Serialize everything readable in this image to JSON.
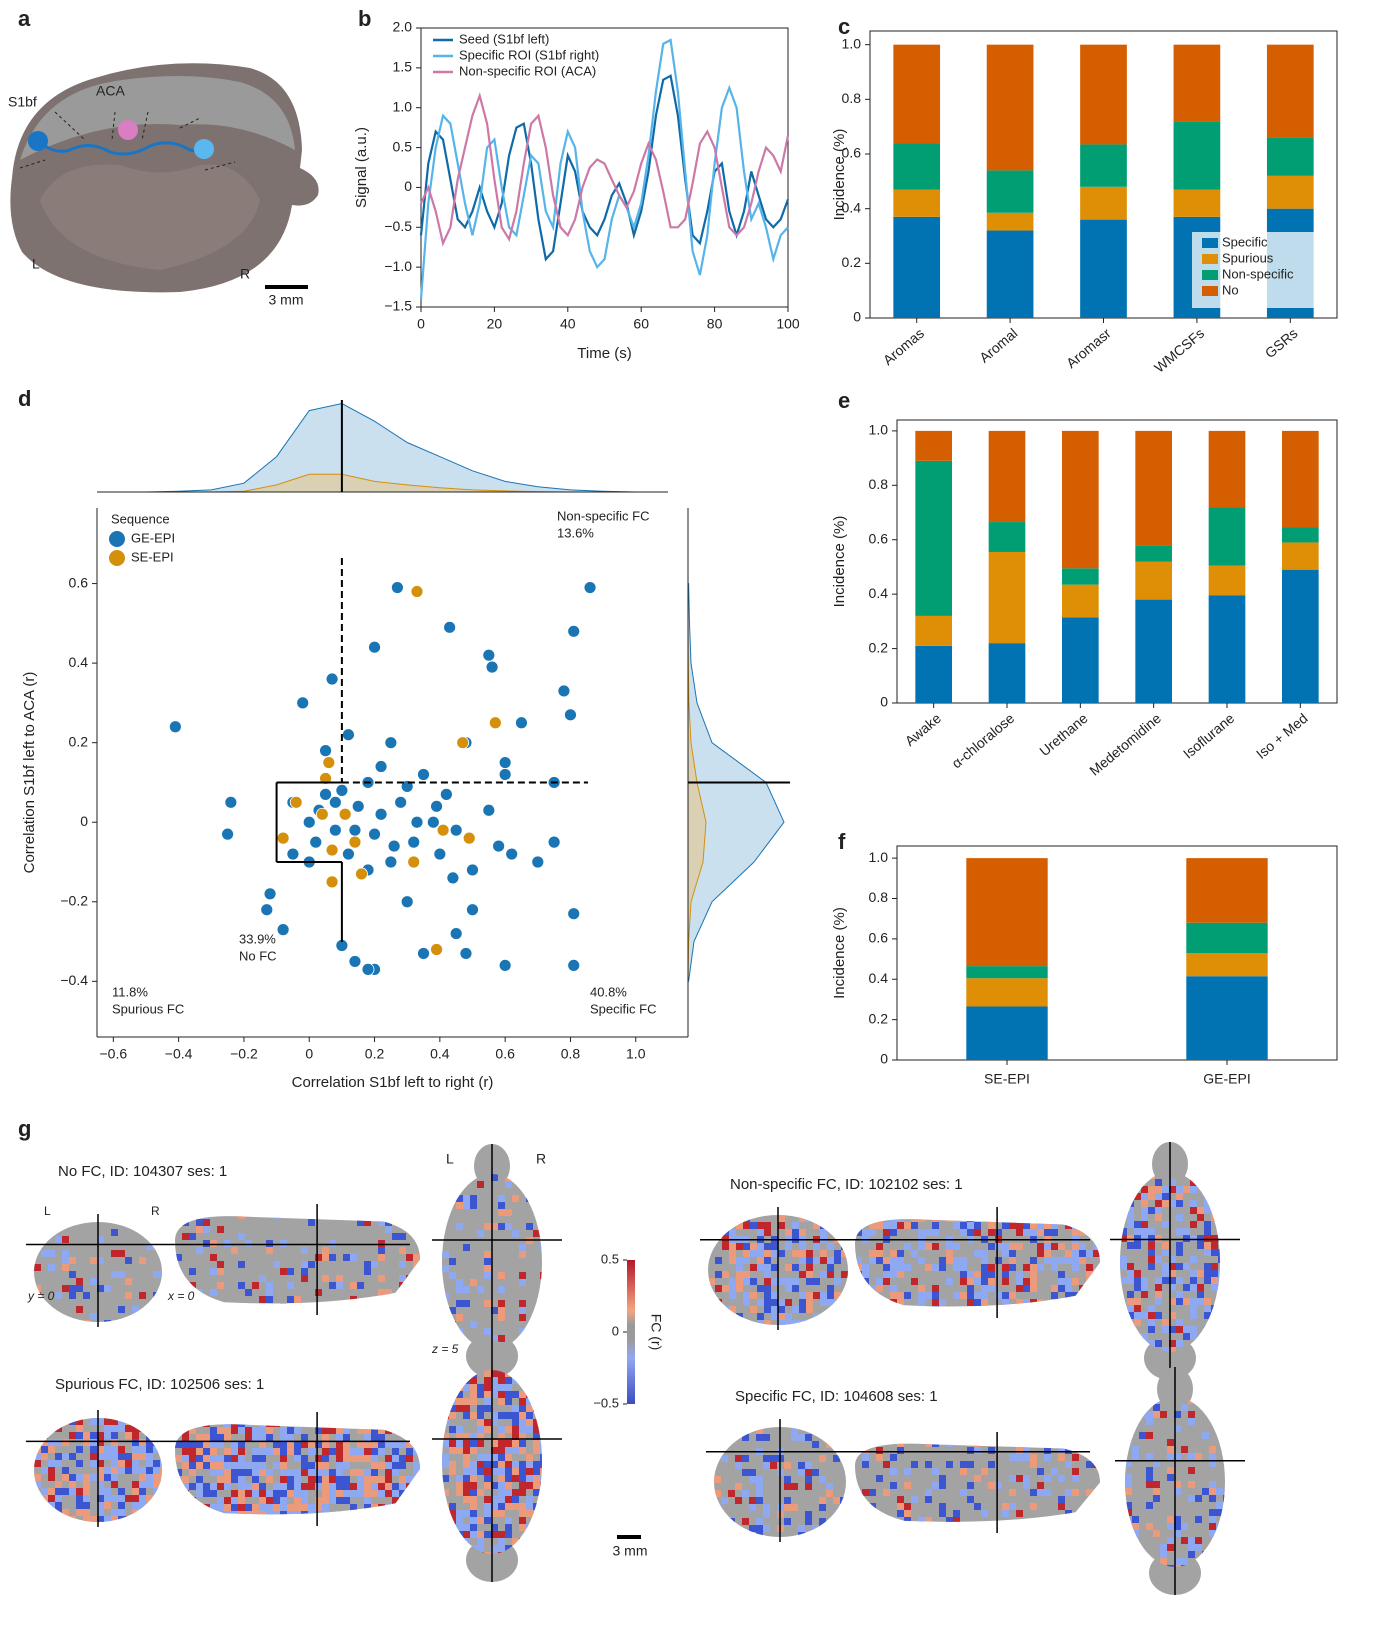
{
  "panel_labels": [
    "a",
    "b",
    "c",
    "d",
    "e",
    "f",
    "g"
  ],
  "panel_a": {
    "labels": [
      "S1bf",
      "ACA",
      "L",
      "R"
    ],
    "scale_bar": "3 mm"
  },
  "chart_data": [
    {
      "type": "line",
      "x_label": "Time (s)",
      "y_label": "Signal (a.u.)",
      "x": [
        0,
        2,
        4,
        6,
        8,
        10,
        12,
        14,
        16,
        18,
        20,
        22,
        24,
        26,
        28,
        30,
        32,
        34,
        36,
        38,
        40,
        42,
        44,
        46,
        48,
        50,
        52,
        54,
        56,
        58,
        60,
        62,
        64,
        66,
        68,
        70,
        72,
        74,
        76,
        78,
        80,
        82,
        84,
        86,
        88,
        90,
        92,
        94,
        96,
        98,
        100
      ],
      "series": [
        {
          "name": "Seed (S1bf left)",
          "color": "#0e6aa8",
          "values": [
            -0.6,
            0.3,
            0.7,
            0.6,
            0.1,
            -0.4,
            -0.5,
            -0.3,
            0.0,
            -0.3,
            -0.5,
            -0.2,
            0.4,
            0.75,
            0.8,
            0.3,
            -0.4,
            -0.9,
            -0.8,
            -0.2,
            0.4,
            0.2,
            -0.3,
            -0.5,
            -0.6,
            -0.4,
            -0.1,
            0.05,
            -0.2,
            -0.6,
            -0.3,
            0.2,
            0.9,
            1.35,
            1.4,
            0.9,
            0.1,
            -0.6,
            -0.7,
            -0.3,
            0.2,
            0.3,
            -0.3,
            -0.6,
            -0.3,
            0.2,
            -0.1,
            -0.4,
            -0.5,
            -0.4,
            -0.15
          ]
        },
        {
          "name": "Specific ROI (S1bf right)",
          "color": "#56b4e9",
          "values": [
            -1.4,
            -0.2,
            0.5,
            0.9,
            0.8,
            0.3,
            -0.2,
            -0.6,
            -0.2,
            0.5,
            0.6,
            0.0,
            -0.5,
            -0.6,
            -0.1,
            0.4,
            0.3,
            -0.3,
            -0.5,
            0.3,
            0.7,
            0.5,
            -0.3,
            -0.8,
            -1.0,
            -0.9,
            -0.4,
            -0.1,
            -0.25,
            -0.5,
            -0.2,
            0.4,
            1.2,
            1.8,
            1.85,
            1.2,
            0.2,
            -0.8,
            -1.1,
            -0.6,
            0.3,
            1.0,
            1.25,
            1.0,
            0.2,
            -0.4,
            -0.2,
            -0.5,
            -0.9,
            -0.6,
            -0.5
          ]
        },
        {
          "name": "Non-specific ROI (ACA)",
          "color": "#cc79a7",
          "values": [
            -0.2,
            0.0,
            -0.3,
            -0.7,
            -0.5,
            0.1,
            0.5,
            0.9,
            1.15,
            0.8,
            0.1,
            -0.5,
            -0.65,
            -0.3,
            0.3,
            0.8,
            0.9,
            0.5,
            -0.1,
            -0.5,
            -0.6,
            -0.4,
            0.0,
            0.25,
            0.35,
            0.3,
            0.1,
            -0.1,
            -0.25,
            -0.05,
            0.3,
            0.55,
            0.35,
            -0.05,
            -0.5,
            -0.5,
            -0.4,
            0.05,
            0.55,
            0.7,
            0.5,
            0.0,
            -0.5,
            -0.6,
            -0.5,
            -0.2,
            0.2,
            0.5,
            0.4,
            0.2,
            0.65
          ]
        }
      ],
      "xlim": [
        0,
        100
      ],
      "ylim": [
        -1.5,
        2.0
      ],
      "xticks": [
        0,
        20,
        40,
        60,
        80,
        100
      ],
      "yticks": [
        {
          "value": -1.5,
          "label": "−1.5"
        },
        {
          "value": -1.0,
          "label": "−1.0"
        },
        {
          "value": -0.5,
          "label": "−0.5"
        },
        0,
        0.5,
        {
          "value": 1.0,
          "label": "1.0"
        },
        1.5,
        {
          "value": 2.0,
          "label": "2.0"
        }
      ],
      "legend": "upper left"
    },
    {
      "type": "stacked_bar",
      "y_label": "Incidence (%)",
      "categories": [
        "Aromas",
        "Aromal",
        "Aromasr",
        "WMCSFs",
        "GSRs"
      ],
      "series": [
        {
          "name": "Specific",
          "color": "#0173b2",
          "values": [
            0.37,
            0.32,
            0.36,
            0.37,
            0.4
          ]
        },
        {
          "name": "Spurious",
          "color": "#de8f05",
          "values": [
            0.1,
            0.065,
            0.12,
            0.1,
            0.12
          ]
        },
        {
          "name": "Non-specific",
          "color": "#029e73",
          "values": [
            0.17,
            0.155,
            0.155,
            0.25,
            0.14
          ]
        },
        {
          "name": "No",
          "color": "#d55e00",
          "values": [
            0.36,
            0.46,
            0.365,
            0.28,
            0.34
          ]
        }
      ],
      "ylim": [
        0,
        1.05
      ],
      "yticks": [
        0,
        0.2,
        0.4,
        0.6,
        0.8,
        {
          "value": 1.0,
          "label": "1.0"
        }
      ],
      "legend": "lower right"
    },
    {
      "type": "scatter",
      "x_label": "Correlation S1bf left to right (r)",
      "y_label": "Correlation S1bf left to ACA (r)",
      "legend_title": "Sequence",
      "series": [
        {
          "name": "GE-EPI",
          "color": "#1a75b4",
          "x": [
            -0.41,
            -0.24,
            -0.25,
            -0.13,
            -0.12,
            -0.08,
            -0.05,
            0.0,
            0.02,
            0.05,
            0.08,
            0.1,
            0.12,
            0.15,
            0.18,
            0.2,
            0.22,
            0.25,
            0.28,
            0.3,
            0.32,
            0.35,
            0.38,
            0.4,
            0.42,
            0.45,
            0.48,
            0.5,
            0.55,
            0.58,
            0.6,
            0.62,
            0.65,
            0.7,
            0.75,
            0.8,
            0.81,
            0.86,
            0.78,
            0.81,
            0.81,
            0.75,
            0.6,
            0.48,
            0.2,
            0.18,
            0.14,
            0.1,
            0.43,
            0.27,
            0.2,
            0.07,
            -0.02,
            0.05,
            0.25,
            0.3,
            0.35,
            0.12,
            0.0,
            -0.05,
            0.03,
            0.08,
            0.14,
            0.18,
            0.22,
            0.26,
            0.33,
            0.39,
            0.44,
            0.55,
            0.56,
            0.5,
            0.45,
            0.6
          ],
          "y": [
            0.24,
            0.05,
            -0.03,
            -0.22,
            -0.18,
            -0.27,
            0.05,
            0.0,
            -0.05,
            0.07,
            -0.02,
            0.08,
            -0.08,
            0.04,
            0.1,
            -0.03,
            0.02,
            -0.1,
            0.05,
            0.09,
            -0.05,
            0.12,
            0.0,
            -0.08,
            0.07,
            -0.02,
            0.2,
            -0.12,
            0.03,
            -0.06,
            0.15,
            -0.08,
            0.25,
            -0.1,
            0.1,
            0.27,
            0.48,
            0.59,
            0.33,
            -0.23,
            -0.36,
            -0.05,
            -0.36,
            -0.33,
            -0.37,
            -0.37,
            -0.35,
            -0.31,
            0.49,
            0.59,
            0.44,
            0.36,
            0.3,
            0.18,
            0.2,
            -0.2,
            -0.33,
            0.22,
            -0.1,
            -0.08,
            0.03,
            0.05,
            -0.02,
            -0.12,
            0.14,
            -0.06,
            0.0,
            0.04,
            -0.14,
            0.42,
            0.39,
            -0.22,
            -0.28,
            0.12
          ]
        },
        {
          "name": "SE-EPI",
          "color": "#d4900a",
          "x": [
            0.33,
            0.57,
            0.47,
            0.06,
            0.05,
            0.04,
            -0.08,
            -0.04,
            0.07,
            0.14,
            0.16,
            0.32,
            0.41,
            0.49,
            0.39,
            0.07,
            0.11
          ],
          "y": [
            0.58,
            0.25,
            0.2,
            0.15,
            0.11,
            0.02,
            -0.04,
            0.05,
            -0.07,
            -0.05,
            -0.13,
            -0.1,
            -0.02,
            -0.04,
            -0.32,
            -0.15,
            0.02
          ]
        }
      ],
      "xlim": [
        -0.65,
        1.16
      ],
      "ylim": [
        -0.54,
        0.79
      ],
      "xticks": [
        {
          "value": -0.6,
          "label": "−0.6"
        },
        {
          "value": -0.4,
          "label": "−0.4"
        },
        {
          "value": -0.2,
          "label": "−0.2"
        },
        0,
        0.2,
        0.4,
        0.6,
        0.8,
        {
          "value": 1.0,
          "label": "1.0"
        }
      ],
      "yticks": [
        {
          "value": -0.4,
          "label": "−0.4"
        },
        {
          "value": -0.2,
          "label": "−0.2"
        },
        0,
        0.2,
        0.4,
        0.6
      ],
      "thresholds": [
        -0.1,
        0.1
      ],
      "annotations": [
        "Non-specific FC",
        "13.6%",
        "33.9%",
        "No FC",
        "11.8%",
        "Spurious FC",
        "40.8%",
        "Specific FC"
      ],
      "x_density_at": [
        -0.6,
        -0.5,
        -0.4,
        -0.3,
        -0.2,
        -0.1,
        0,
        0.1,
        0.2,
        0.3,
        0.4,
        0.5,
        0.6,
        0.7,
        0.8,
        0.9,
        1.0
      ],
      "x_density": [
        [
          0,
          0,
          0.02,
          0.06,
          0.25,
          1.0,
          2.3,
          2.5,
          2.0,
          1.4,
          1.0,
          0.6,
          0.3,
          0.15,
          0.06,
          0.02,
          0
        ],
        [
          0,
          0,
          0,
          0,
          0.02,
          0.2,
          0.5,
          0.5,
          0.3,
          0.2,
          0.12,
          0.06,
          0.03,
          0.01,
          0,
          0,
          0
        ]
      ],
      "x_density_lim": [
        0,
        2.6
      ],
      "y_density_at": [
        -0.4,
        -0.3,
        -0.2,
        -0.1,
        0,
        0.1,
        0.2,
        0.3,
        0.4,
        0.5,
        0.6
      ],
      "y_density": [
        [
          0.02,
          0.2,
          0.8,
          2.2,
          3.2,
          2.6,
          0.8,
          0.3,
          0.1,
          0.05,
          0.02
        ],
        [
          0,
          0.02,
          0.1,
          0.5,
          0.6,
          0.3,
          0.1,
          0.03,
          0.01,
          0,
          0
        ]
      ],
      "y_density_lim": [
        0,
        3.4
      ],
      "legend": "upper left"
    },
    {
      "type": "stacked_bar",
      "y_label": "Incidence (%)",
      "categories": [
        "Awake",
        "α-chloralose",
        "Urethane",
        "Medetomidine",
        "Isoflurane",
        "Iso + Med"
      ],
      "series": [
        {
          "name": "Specific",
          "color": "#0173b2",
          "values": [
            0.21,
            0.22,
            0.315,
            0.38,
            0.395,
            0.49
          ]
        },
        {
          "name": "Spurious",
          "color": "#de8f05",
          "values": [
            0.11,
            0.335,
            0.12,
            0.14,
            0.11,
            0.1
          ]
        },
        {
          "name": "Non-specific",
          "color": "#029e73",
          "values": [
            0.57,
            0.11,
            0.06,
            0.06,
            0.215,
            0.055
          ]
        },
        {
          "name": "No",
          "color": "#d55e00",
          "values": [
            0.11,
            0.335,
            0.505,
            0.42,
            0.28,
            0.355
          ]
        }
      ],
      "ylim": [
        0,
        1.04
      ],
      "yticks": [
        0,
        0.2,
        0.4,
        0.6,
        0.8,
        {
          "value": 1.0,
          "label": "1.0"
        }
      ]
    },
    {
      "type": "stacked_bar",
      "y_label": "Incidence (%)",
      "categories": [
        "SE-EPI",
        "GE-EPI"
      ],
      "series": [
        {
          "name": "Specific",
          "color": "#0173b2",
          "values": [
            0.265,
            0.415
          ]
        },
        {
          "name": "Spurious",
          "color": "#de8f05",
          "values": [
            0.14,
            0.115
          ]
        },
        {
          "name": "Non-specific",
          "color": "#029e73",
          "values": [
            0.06,
            0.15
          ]
        },
        {
          "name": "No",
          "color": "#d55e00",
          "values": [
            0.535,
            0.32
          ]
        }
      ],
      "ylim": [
        0,
        1.06
      ],
      "yticks": [
        0,
        0.2,
        0.4,
        0.6,
        0.8,
        {
          "value": 1.0,
          "label": "1.0"
        }
      ]
    }
  ],
  "panel_g": {
    "maps": [
      {
        "title": "No FC, ID: 104307 ses: 1"
      },
      {
        "title": "Spurious FC, ID: 102506 ses: 1"
      },
      {
        "title": "Non-specific FC, ID: 102102 ses: 1"
      },
      {
        "title": "Specific FC, ID: 104608 ses: 1"
      }
    ],
    "orientation": [
      "L",
      "R"
    ],
    "slice_labels": [
      "y = 0",
      "x = 0",
      "z = 5"
    ],
    "colorbar": {
      "title": "FC (r)",
      "lim": [
        -0.5,
        0.5
      ],
      "ticks": [
        0.5,
        0,
        {
          "value": -0.5,
          "label": "−0.5"
        }
      ]
    },
    "scale_bar": "3 mm"
  }
}
